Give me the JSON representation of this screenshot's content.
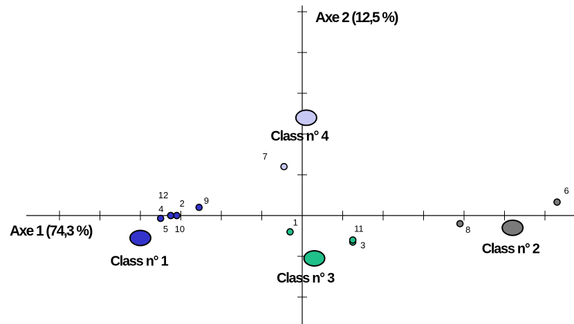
{
  "chart_data": {
    "type": "scatter",
    "title": "",
    "xlabel": "Axe 1 (74,3 %)",
    "ylabel": "Axe 2 (12,5 %)",
    "xlim": [
      -6.8,
      6.8
    ],
    "ylim": [
      -2.7,
      5.0
    ],
    "xticks": [
      -6,
      -5,
      -4,
      -3,
      -2,
      -1,
      1,
      2,
      3,
      4,
      5,
      6
    ],
    "yticks": [
      -2,
      -1,
      1,
      2,
      3,
      4,
      5
    ],
    "grid": false,
    "legend": "none",
    "points": [
      {
        "label": "1",
        "x": -0.3,
        "y": -0.4,
        "color": "#1fc08a",
        "label_dx": 4,
        "label_dy": -9
      },
      {
        "label": "2",
        "x": -3.1,
        "y": 0.0,
        "color": "#3333cc",
        "label_dx": 4,
        "label_dy": -13
      },
      {
        "label": "3",
        "x": 1.25,
        "y": -0.65,
        "color": "#1fc08a",
        "label_dx": 11,
        "label_dy": 9
      },
      {
        "label": "4",
        "x": -3.5,
        "y": -0.07,
        "color": "#3333cc",
        "label_dx": -3,
        "label_dy": -9
      },
      {
        "label": "5",
        "x": -3.25,
        "y": 0.0,
        "color": "#3333cc",
        "label_dx": -11,
        "label_dy": 24
      },
      {
        "label": "6",
        "x": 6.3,
        "y": 0.33,
        "color": "#7a7a7a",
        "label_dx": 10,
        "label_dy": -12
      },
      {
        "label": "7",
        "x": -0.45,
        "y": 1.2,
        "color": "#c8c8f4",
        "label_dx": -31,
        "label_dy": -10
      },
      {
        "label": "8",
        "x": 3.9,
        "y": -0.2,
        "color": "#7a7a7a",
        "label_dx": 8,
        "label_dy": 13
      },
      {
        "label": "9",
        "x": -2.55,
        "y": 0.2,
        "color": "#3333cc",
        "label_dx": 7,
        "label_dy": -5
      },
      {
        "label": "10",
        "x": -3.1,
        "y": 0.0,
        "color": "#3333cc",
        "label_dx": -3,
        "label_dy": 24
      },
      {
        "label": "11",
        "x": 1.25,
        "y": -0.6,
        "color": "#1fc08a",
        "label_dx": 2,
        "label_dy": -12
      },
      {
        "label": "12",
        "x": -3.25,
        "y": 0.0,
        "color": "#3333cc",
        "label_dx": -18,
        "label_dy": -25
      }
    ],
    "centroids": [
      {
        "label": "Class n° 1",
        "x": -4.0,
        "y": -0.55,
        "color": "#3333cc",
        "label_dx": -2,
        "label_dy": 40
      },
      {
        "label": "Class n° 2",
        "x": 5.2,
        "y": -0.3,
        "color": "#7a7a7a",
        "label_dx": -3,
        "label_dy": 37
      },
      {
        "label": "Class n° 3",
        "x": 0.3,
        "y": -1.05,
        "color": "#1fc08a",
        "label_dx": -13,
        "label_dy": 35
      },
      {
        "label": "Class n° 4",
        "x": 0.1,
        "y": 2.4,
        "color": "#c8c8f4",
        "label_dx": -10,
        "label_dy": 33
      }
    ]
  }
}
